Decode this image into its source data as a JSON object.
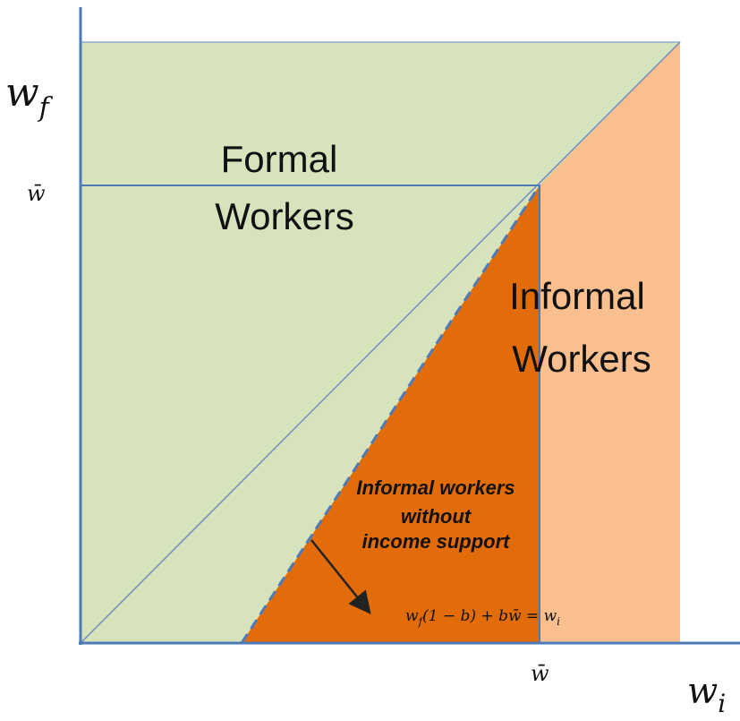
{
  "axes": {
    "y_label": {
      "base": "w",
      "sub": "f"
    },
    "y_tick": "w̄",
    "x_tick": "w̄",
    "x_label": {
      "base": "w",
      "sub": "i"
    }
  },
  "regions": {
    "formal": [
      "Formal",
      "Workers"
    ],
    "informal": [
      "Informal",
      "Workers"
    ],
    "no_support": [
      "Informal workers",
      "without",
      "income support"
    ]
  },
  "formula": [
    {
      "text": "w",
      "sub": false
    },
    {
      "text": "f",
      "sub": true
    },
    {
      "text": "(1 − b) + b",
      "sub": false
    },
    {
      "text": "w̄",
      "sub": false
    },
    {
      "text": " = w",
      "sub": false
    },
    {
      "text": "i",
      "sub": true
    }
  ]
}
